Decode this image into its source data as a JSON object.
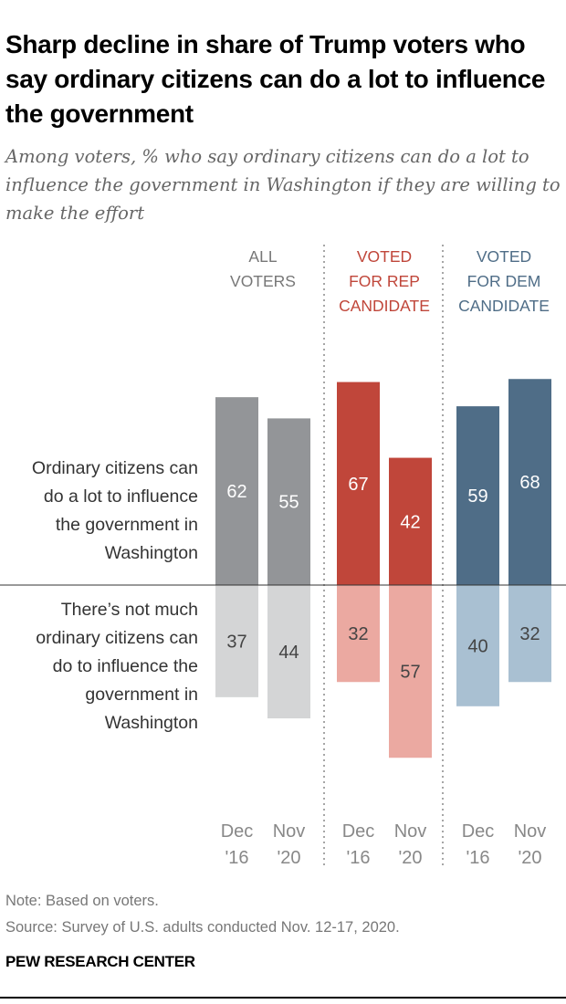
{
  "title": "Sharp decline in share of Trump voters who say ordinary citizens can do a lot to influence the government",
  "subtitle": "Among voters, % who say ordinary citizens can do a lot to influence the government in Washington if they are willing to make the effort",
  "chart_data": {
    "type": "bar",
    "categories": [
      "Dec '16",
      "Nov '20"
    ],
    "category_lines": [
      [
        "Dec",
        "'16"
      ],
      [
        "Nov",
        "'20"
      ]
    ],
    "groups": [
      {
        "label_lines": [
          "ALL",
          "VOTERS"
        ],
        "color_top": "#939598",
        "color_bottom": "#d4d5d6",
        "label_color": "#777777",
        "top_values": [
          62,
          55
        ],
        "bottom_values": [
          37,
          44
        ]
      },
      {
        "label_lines": [
          "VOTED",
          "FOR REP",
          "CANDIDATE"
        ],
        "color_top": "#c0463a",
        "color_bottom": "#eba9a1",
        "label_color": "#c0463a",
        "top_values": [
          67,
          42
        ],
        "bottom_values": [
          32,
          57
        ]
      },
      {
        "label_lines": [
          "VOTED",
          "FOR DEM",
          "CANDIDATE"
        ],
        "color_top": "#4f6d87",
        "color_bottom": "#a9c0d2",
        "label_color": "#4f6d87",
        "top_values": [
          59,
          68
        ],
        "bottom_values": [
          40,
          32
        ]
      }
    ],
    "row_labels": {
      "top": [
        "Ordinary citizens can",
        "do a lot to influence",
        "the government in",
        "Washington"
      ],
      "bottom": [
        "There’s not much",
        "ordinary citizens can",
        "do to influence the",
        "government in",
        "Washington"
      ]
    },
    "grid": false
  },
  "note": "Note: Based on voters.",
  "source": "Source: Survey of U.S. adults conducted Nov. 12-17, 2020.",
  "brand": "PEW RESEARCH CENTER"
}
